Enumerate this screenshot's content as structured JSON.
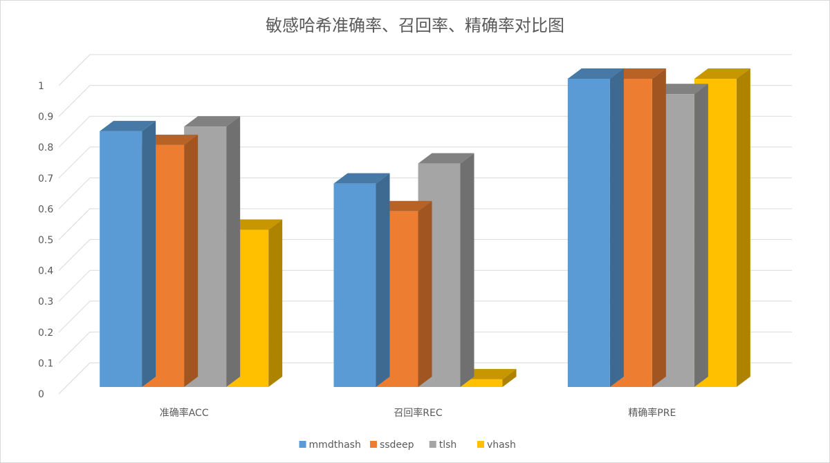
{
  "chart_data": {
    "type": "bar3d",
    "title": "敏感哈希准确率、召回率、精确率对比图",
    "categories": [
      "准确率ACC",
      "召回率REC",
      "精确率PRE"
    ],
    "series": [
      {
        "name": "mmdthash",
        "color": "#5b9bd5",
        "values": [
          0.83,
          0.66,
          1
        ]
      },
      {
        "name": "ssdeep",
        "color": "#ed7d31",
        "values": [
          0.785,
          0.57,
          1
        ]
      },
      {
        "name": "tlsh",
        "color": "#a5a5a5",
        "values": [
          0.845,
          0.725,
          0.95
        ]
      },
      {
        "name": "vhash",
        "color": "#ffc000",
        "values": [
          0.51,
          0.025,
          1
        ]
      }
    ],
    "ylim": [
      0,
      1
    ],
    "yticks": [
      0,
      0.1,
      0.2,
      0.3,
      0.4,
      0.5,
      0.6,
      0.7,
      0.8,
      0.9,
      1
    ],
    "grid": true,
    "legend": "bottom"
  }
}
